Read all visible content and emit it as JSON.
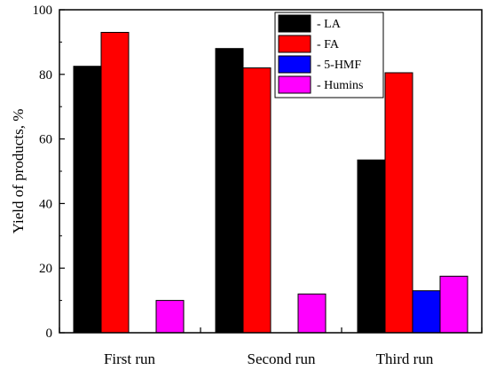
{
  "chart_data": {
    "type": "bar",
    "categories": [
      "First run",
      "Second run",
      "Third run"
    ],
    "series": [
      {
        "name": "- LA",
        "color": "#000000",
        "values": [
          82.5,
          88,
          53.5
        ]
      },
      {
        "name": "- FA",
        "color": "#ff0000",
        "values": [
          93,
          82,
          80.5
        ]
      },
      {
        "name": "- 5-HMF",
        "color": "#0000ff",
        "values": [
          0,
          0,
          13
        ]
      },
      {
        "name": "- Humins",
        "color": "#ff00ff",
        "values": [
          10,
          12,
          17.5
        ]
      }
    ],
    "title": "",
    "xlabel": "",
    "ylabel": "Yield of products, %",
    "ylim": [
      0,
      100
    ],
    "yticks": [
      "0",
      "20",
      "40",
      "60",
      "80",
      "100"
    ],
    "grid": false,
    "legend_position": "top-right"
  }
}
